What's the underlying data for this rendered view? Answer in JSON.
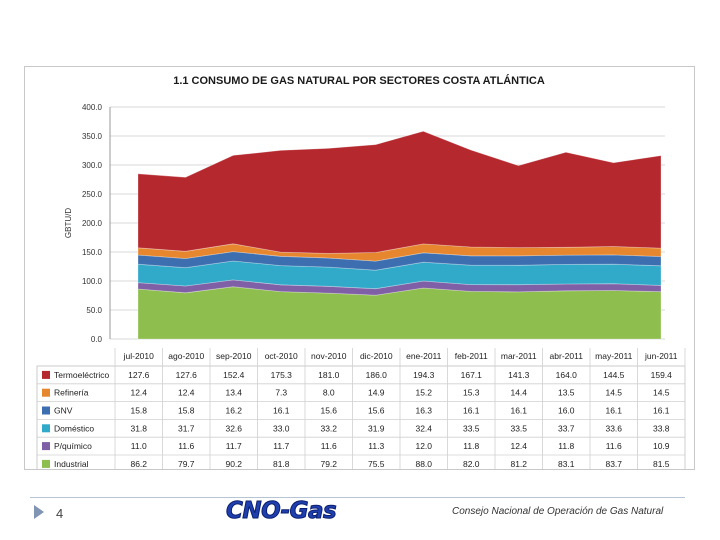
{
  "chart_data": {
    "type": "area",
    "stacked": true,
    "title": "1.1  CONSUMO DE GAS NATURAL POR SECTORES COSTA ATLÁNTICA",
    "ylabel": "GBTU/D",
    "ylim": [
      0,
      400
    ],
    "yticks": [
      "0.0",
      "50.0",
      "100.0",
      "150.0",
      "200.0",
      "250.0",
      "300.0",
      "350.0",
      "400.0"
    ],
    "categories": [
      "jul-2010",
      "ago-2010",
      "sep-2010",
      "oct-2010",
      "nov-2010",
      "dic-2010",
      "ene-2011",
      "feb-2011",
      "mar-2011",
      "abr-2011",
      "may-2011",
      "jun-2011"
    ],
    "grid": true,
    "series": [
      {
        "name": "Industrial",
        "color": "#8ebe4d",
        "values": [
          86.2,
          79.7,
          90.2,
          81.8,
          79.2,
          75.5,
          88.0,
          82.0,
          81.2,
          83.1,
          83.7,
          81.5
        ],
        "labels": [
          "86.2",
          "79.7",
          "90.2",
          "81.8",
          "79.2",
          "75.5",
          "88.0",
          "82.0",
          "81.2",
          "83.1",
          "83.7",
          "81.5"
        ]
      },
      {
        "name": "P/químico",
        "color": "#7f5fa6",
        "values": [
          11.0,
          11.6,
          11.7,
          11.7,
          11.6,
          11.3,
          12.0,
          11.8,
          12.4,
          11.8,
          11.6,
          10.9
        ],
        "labels": [
          "11.0",
          "11.6",
          "11.7",
          "11.7",
          "11.6",
          "11.3",
          "12.0",
          "11.8",
          "12.4",
          "11.8",
          "11.6",
          "10.9"
        ]
      },
      {
        "name": "Doméstico",
        "color": "#31a9c9",
        "values": [
          31.8,
          31.7,
          32.6,
          33.0,
          33.2,
          31.9,
          32.4,
          33.5,
          33.5,
          33.7,
          33.6,
          33.8
        ],
        "labels": [
          "31.8",
          "31.7",
          "32.6",
          "33.0",
          "33.2",
          "31.9",
          "32.4",
          "33.5",
          "33.5",
          "33.7",
          "33.6",
          "33.8"
        ]
      },
      {
        "name": "GNV",
        "color": "#3d6fb0",
        "values": [
          15.8,
          15.8,
          16.2,
          16.1,
          15.6,
          15.6,
          16.3,
          16.1,
          16.1,
          16.0,
          16.1,
          16.1
        ],
        "labels": [
          "15.8",
          "15.8",
          "16.2",
          "16.1",
          "15.6",
          "15.6",
          "16.3",
          "16.1",
          "16.1",
          "16.0",
          "16.1",
          "16.1"
        ]
      },
      {
        "name": "Refinería",
        "color": "#e6872f",
        "values": [
          12.4,
          12.4,
          13.4,
          7.3,
          8.0,
          14.9,
          15.2,
          15.3,
          14.4,
          13.5,
          14.5,
          14.5
        ],
        "labels": [
          "12.4",
          "12.4",
          "13.4",
          "7.3",
          "8.0",
          "14.9",
          "15.2",
          "15.3",
          "14.4",
          "13.5",
          "14.5",
          "14.5"
        ]
      },
      {
        "name": "Termoeléctrico",
        "color": "#b5282e",
        "values": [
          127.6,
          127.6,
          152.4,
          175.3,
          181.0,
          186.0,
          194.3,
          167.1,
          141.3,
          164.0,
          144.5,
          159.4
        ],
        "labels": [
          "127.6",
          "127.6",
          "152.4",
          "175.3",
          "181.0",
          "186.0",
          "194.3",
          "167.1",
          "141.3",
          "164.0",
          "144.5",
          "159.4"
        ]
      }
    ]
  },
  "footer": {
    "page_number": "4",
    "logo_text": "CNO-Gas",
    "organization": "Consejo Nacional de Operación de Gas Natural"
  }
}
